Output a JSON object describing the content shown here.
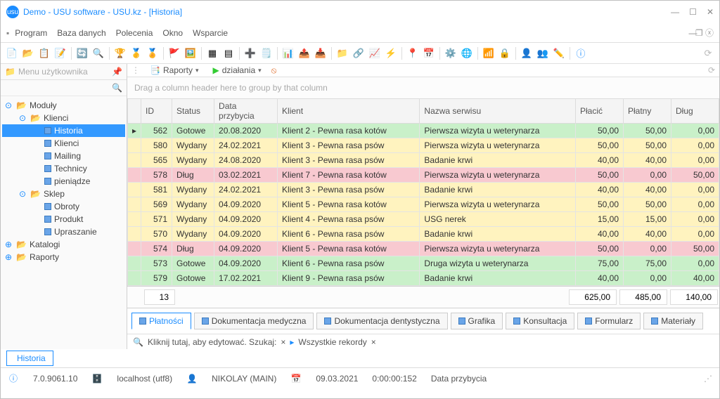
{
  "window": {
    "title": "Demo - USU software - USU.kz - [Historia]"
  },
  "menu": {
    "items": [
      "Program",
      "Baza danych",
      "Polecenia",
      "Okno",
      "Wsparcie"
    ]
  },
  "sidebar": {
    "header": "Menu użytkownika",
    "tree": [
      {
        "label": "Moduły",
        "level": 0,
        "kind": "folder",
        "expand": "⊙"
      },
      {
        "label": "Klienci",
        "level": 1,
        "kind": "folder",
        "expand": "⊙"
      },
      {
        "label": "Historia",
        "level": 2,
        "kind": "leaf",
        "selected": true
      },
      {
        "label": "Klienci",
        "level": 2,
        "kind": "leaf"
      },
      {
        "label": "Mailing",
        "level": 2,
        "kind": "leaf"
      },
      {
        "label": "Technicy",
        "level": 2,
        "kind": "leaf"
      },
      {
        "label": "pieniądze",
        "level": 2,
        "kind": "leaf"
      },
      {
        "label": "Sklep",
        "level": 1,
        "kind": "folder",
        "expand": "⊙"
      },
      {
        "label": "Obroty",
        "level": 2,
        "kind": "leaf"
      },
      {
        "label": "Produkt",
        "level": 2,
        "kind": "leaf"
      },
      {
        "label": "Upraszanie",
        "level": 2,
        "kind": "leaf"
      },
      {
        "label": "Katalogi",
        "level": 0,
        "kind": "folder",
        "expand": "⊕"
      },
      {
        "label": "Raporty",
        "level": 0,
        "kind": "folder",
        "expand": "⊕"
      }
    ]
  },
  "content_toolbar": {
    "reports": "Raporty",
    "actions": "działania"
  },
  "group_hint": "Drag a column header here to group by that column",
  "columns": [
    "ID",
    "Status",
    "Data przybycia",
    "Klient",
    "Nazwa serwisu",
    "Płacić",
    "Płat­ny",
    "Dług"
  ],
  "col_labels": {
    "id": "ID",
    "status": "Status",
    "date": "Data przybycia",
    "client": "Klient",
    "service": "Nazwa serwisu",
    "pay": "Płacić",
    "paid": "Płat­ny",
    "debt": "Dług"
  },
  "rows": [
    {
      "id": 562,
      "status": "Gotowe",
      "date": "20.08.2020",
      "client": "Klient 2 - Pewna rasa kotów",
      "service": "Pierwsza wizyta u weterynarza",
      "pay": "50,00",
      "paid": "50,00",
      "debt": "0,00",
      "cls": "gotowe",
      "marker": "▸"
    },
    {
      "id": 580,
      "status": "Wydany",
      "date": "24.02.2021",
      "client": "Klient 3 - Pewna rasa psów",
      "service": "Pierwsza wizyta u weterynarza",
      "pay": "50,00",
      "paid": "50,00",
      "debt": "0,00",
      "cls": "wydany"
    },
    {
      "id": 565,
      "status": "Wydany",
      "date": "24.08.2020",
      "client": "Klient 3 - Pewna rasa psów",
      "service": "Badanie krwi",
      "pay": "40,00",
      "paid": "40,00",
      "debt": "0,00",
      "cls": "wydany"
    },
    {
      "id": 578,
      "status": "Dług",
      "date": "03.02.2021",
      "client": "Klient 7 - Pewna rasa kotów",
      "service": "Pierwsza wizyta u weterynarza",
      "pay": "50,00",
      "paid": "0,00",
      "debt": "50,00",
      "cls": "dlug"
    },
    {
      "id": 581,
      "status": "Wydany",
      "date": "24.02.2021",
      "client": "Klient 3 - Pewna rasa psów",
      "service": "Badanie krwi",
      "pay": "40,00",
      "paid": "40,00",
      "debt": "0,00",
      "cls": "wydany"
    },
    {
      "id": 569,
      "status": "Wydany",
      "date": "04.09.2020",
      "client": "Klient 5 - Pewna rasa kotów",
      "service": "Pierwsza wizyta u weterynarza",
      "pay": "50,00",
      "paid": "50,00",
      "debt": "0,00",
      "cls": "wydany"
    },
    {
      "id": 571,
      "status": "Wydany",
      "date": "04.09.2020",
      "client": "Klient 4 - Pewna rasa psów",
      "service": "USG nerek",
      "pay": "15,00",
      "paid": "15,00",
      "debt": "0,00",
      "cls": "wydany"
    },
    {
      "id": 570,
      "status": "Wydany",
      "date": "04.09.2020",
      "client": "Klient 6 - Pewna rasa psów",
      "service": "Badanie krwi",
      "pay": "40,00",
      "paid": "40,00",
      "debt": "0,00",
      "cls": "wydany"
    },
    {
      "id": 574,
      "status": "Dług",
      "date": "04.09.2020",
      "client": "Klient 5 - Pewna rasa kotów",
      "service": "Pierwsza wizyta u weterynarza",
      "pay": "50,00",
      "paid": "0,00",
      "debt": "50,00",
      "cls": "dlug"
    },
    {
      "id": 573,
      "status": "Gotowe",
      "date": "04.09.2020",
      "client": "Klient 6 - Pewna rasa psów",
      "service": "Druga wizyta u weterynarza",
      "pay": "75,00",
      "paid": "75,00",
      "debt": "0,00",
      "cls": "gotowe"
    },
    {
      "id": 579,
      "status": "Gotowe",
      "date": "17.02.2021",
      "client": "Klient 9 - Pewna rasa psów",
      "service": "Badanie krwi",
      "pay": "40,00",
      "paid": "0,00",
      "debt": "40,00",
      "cls": "gotowe"
    }
  ],
  "summary": {
    "count": "13",
    "pay": "625,00",
    "paid": "485,00",
    "debt": "140,00"
  },
  "subtabs": [
    "Płatności",
    "Dokumentacja medyczna",
    "Dokumentacja dentystyczna",
    "Grafika",
    "Konsultacja",
    "Formularz",
    "Materiały"
  ],
  "searchbar": {
    "hint": "Kliknij tutaj, aby edytować. Szukaj:",
    "filter": "Wszystkie rekordy"
  },
  "footer_tab": "Historia",
  "status": {
    "version": "7.0.9061.10",
    "host": "localhost (utf8)",
    "user": "NIKOLAY (MAIN)",
    "date": "09.03.2021",
    "time": "0:00:00:152",
    "field": "Data przybycia"
  }
}
